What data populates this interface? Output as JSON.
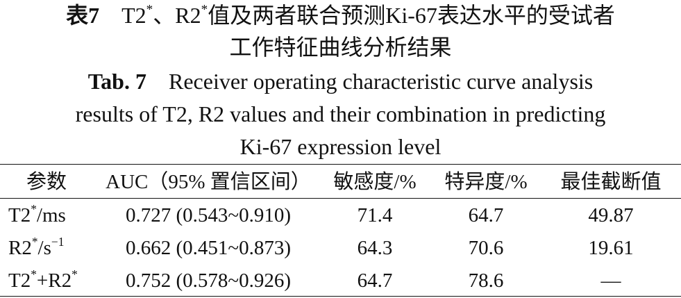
{
  "title_cn": {
    "label": "表7",
    "parts": [
      "T2",
      "*",
      "、R2",
      "*",
      "值及两者联合预测Ki-67表达水平的受试者",
      "工作特征曲线分析结果"
    ]
  },
  "title_en": {
    "label": "Tab. 7",
    "lines": [
      "Receiver operating characteristic curve analysis",
      "results of T2, R2 values and their combination in predicting",
      "Ki-67 expression level"
    ]
  },
  "table": {
    "header": [
      "参数",
      "AUC（95% 置信区间）",
      "敏感度/%",
      "特异度/%",
      "最佳截断值"
    ],
    "row_labels": [
      [
        "T2",
        "*",
        "/ms"
      ],
      [
        "R2",
        "*",
        "/s",
        "−1"
      ],
      [
        "T2",
        "*",
        "+R2",
        "*"
      ]
    ],
    "rows": [
      [
        "0.727 (0.543~0.910)",
        71.4,
        64.7,
        49.87
      ],
      [
        "0.662 (0.451~0.873)",
        64.3,
        70.6,
        19.61
      ],
      [
        "0.752 (0.578~0.926)",
        64.7,
        78.6,
        "—"
      ]
    ]
  }
}
